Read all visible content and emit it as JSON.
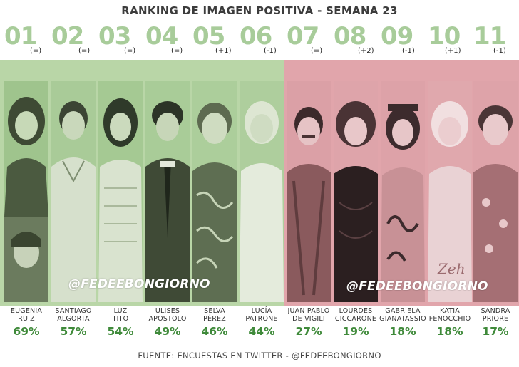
{
  "title": "RANKING DE IMAGEN POSITIVA - SEMANA 23",
  "watermark": "@FEDEEBONGIORNO",
  "footer": "FUENTE: ENCUESTAS EN TWITTER - @FEDEEBONGIORNO",
  "colors": {
    "positive_band": "#b9d6a7",
    "negative_band": "#e1a5ab",
    "percent": "#3f8a3a",
    "rank_number": "#a8cc9a"
  },
  "candidates": [
    {
      "rank": "01",
      "change": "(=)",
      "name1": "EUGENIA",
      "name2": "RUIZ",
      "percent": "69%"
    },
    {
      "rank": "02",
      "change": "(=)",
      "name1": "SANTIAGO",
      "name2": "ALGORTA",
      "percent": "57%"
    },
    {
      "rank": "03",
      "change": "(=)",
      "name1": "LUZ",
      "name2": "TITO",
      "percent": "54%"
    },
    {
      "rank": "04",
      "change": "(=)",
      "name1": "ULISES",
      "name2": "APOSTOLO",
      "percent": "49%"
    },
    {
      "rank": "05",
      "change": "(+1)",
      "name1": "SELVA",
      "name2": "PÉREZ",
      "percent": "46%"
    },
    {
      "rank": "06",
      "change": "(-1)",
      "name1": "LUCÍA",
      "name2": "PATRONE",
      "percent": "44%"
    },
    {
      "rank": "07",
      "change": "(=)",
      "name1": "JUAN PABLO",
      "name2": "DE VIGILI",
      "percent": "27%"
    },
    {
      "rank": "08",
      "change": "(+2)",
      "name1": "LOURDES",
      "name2": "CICCARONE",
      "percent": "19%"
    },
    {
      "rank": "09",
      "change": "(-1)",
      "name1": "GABRIELA",
      "name2": "GIANATASSIO",
      "percent": "18%"
    },
    {
      "rank": "10",
      "change": "(+1)",
      "name1": "KATIA",
      "name2": "FENOCCHIO",
      "percent": "18%"
    },
    {
      "rank": "11",
      "change": "(-1)",
      "name1": "SANDRA",
      "name2": "PRIORE",
      "percent": "17%"
    }
  ]
}
